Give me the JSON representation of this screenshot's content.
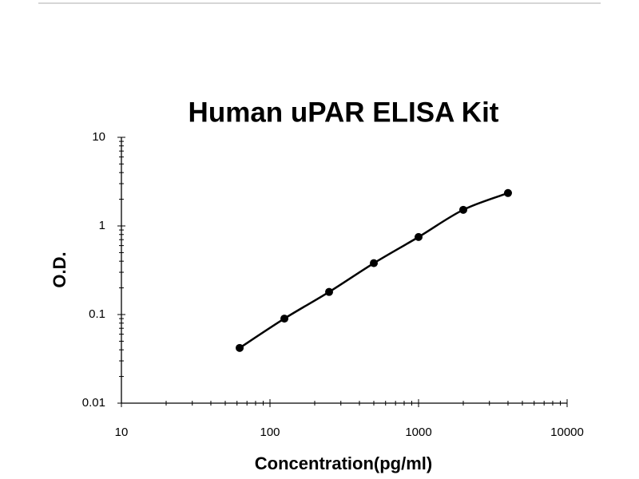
{
  "chart_data": {
    "type": "line",
    "title": "Human uPAR ELISA Kit",
    "x_label": "Concentration(pg/ml)",
    "y_label": "O.D.",
    "x": [
      62.5,
      125,
      250,
      500,
      1000,
      2000,
      4000
    ],
    "series": [
      {
        "color": "#000000",
        "values": [
          0.042,
          0.09,
          0.18,
          0.38,
          0.75,
          1.52,
          2.35
        ]
      }
    ],
    "xscale": "log",
    "yscale": "log",
    "xlim": [
      10,
      10000
    ],
    "ylim": [
      0.01,
      10
    ],
    "xticks": [
      10,
      100,
      1000,
      10000
    ],
    "yticks": [
      0.01,
      0.1,
      1,
      10
    ],
    "minor_ticks": true,
    "grid": false
  }
}
